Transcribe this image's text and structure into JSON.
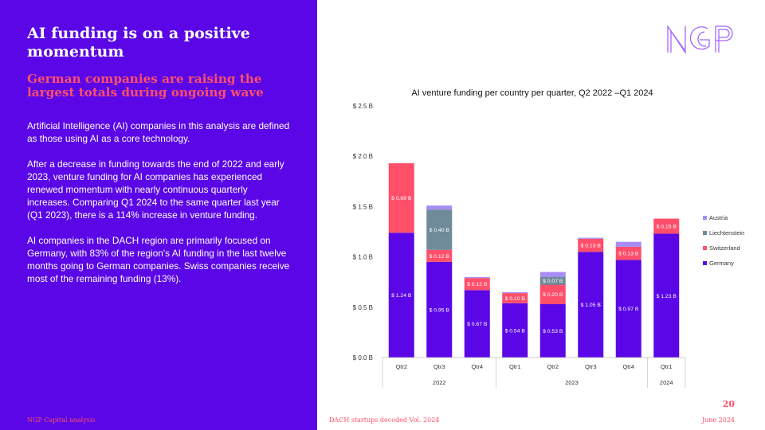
{
  "slide": {
    "title": "AI funding is on a positive momentum",
    "subtitle": "German companies are raising the largest totals during ongoing wave",
    "paragraphs": [
      "Artificial Intelligence (AI) companies in this analysis are defined as those using AI as a core technology.",
      "After a decrease in funding towards the end of 2022 and early 2023, venture funding for AI companies has experienced renewed momentum with nearly continuous quarterly increases. Comparing Q1 2024 to the same quarter last year (Q1 2023), there is a 114% increase in venture funding.",
      "AI companies in the DACH region are primarily focused on Germany, with 83% of the region's AI funding in the last twelve months going to German companies. Swiss companies receive most of the remaining funding (13%)."
    ],
    "page_number": "20",
    "footer_left": "NGP Capital analysis",
    "footer_center": "DACH startups decoded Vol. 2024",
    "footer_right": "June 2024",
    "logo_name": "ngp-logo"
  },
  "colors": {
    "background_left": "#5a06e6",
    "accent": "#ff4f6b",
    "germany": "#5a06e6",
    "switzerland": "#ff4f6b",
    "liechtenstein": "#6f8a99",
    "austria": "#a88cf5"
  },
  "chart_data": {
    "type": "bar",
    "stacked": true,
    "title": "AI venture funding per country per quarter, Q2 2022 –Q1 2024",
    "categories": [
      "Qtr2",
      "Qtr3",
      "Qtr4",
      "Qtr1",
      "Qtr2",
      "Qtr3",
      "Qtr4",
      "Qtr1"
    ],
    "year_groups": [
      {
        "label": "2022",
        "span": 3
      },
      {
        "label": "2023",
        "span": 4
      },
      {
        "label": "2024",
        "span": 1
      }
    ],
    "ylim": [
      0,
      2.5
    ],
    "yticks": [
      {
        "value": 0.0,
        "label": "$ 0.0 B"
      },
      {
        "value": 0.5,
        "label": "$ 0.5 B"
      },
      {
        "value": 1.0,
        "label": "$ 1.0 B"
      },
      {
        "value": 1.5,
        "label": "$ 1.5 B"
      },
      {
        "value": 2.0,
        "label": "$ 2.0 B"
      },
      {
        "value": 2.5,
        "label": "$ 2.5 B"
      }
    ],
    "series": [
      {
        "name": "Germany",
        "color": "#5a06e6",
        "values": [
          1.24,
          0.95,
          0.67,
          0.54,
          0.53,
          1.05,
          0.97,
          1.23
        ],
        "labels": [
          "$ 1.24 B",
          "$ 0.95 B",
          "$ 0.67 B",
          "$ 0.54 B",
          "$ 0.53 B",
          "$ 1.05 B",
          "$ 0.97 B",
          "$ 1.23 B"
        ]
      },
      {
        "name": "Switzerland",
        "color": "#ff4f6b",
        "values": [
          0.69,
          0.12,
          0.12,
          0.1,
          0.2,
          0.13,
          0.13,
          0.15
        ],
        "labels": [
          "$ 0.69 B",
          "$ 0.12 B",
          "$ 0.12 B",
          "$ 0.10 B",
          "$ 0.20 B",
          "$ 0.13 B",
          "$ 0.13 B",
          "$ 0.15 B"
        ]
      },
      {
        "name": "Liechtenstein",
        "color": "#6f8a99",
        "values": [
          0,
          0.4,
          0,
          0,
          0.07,
          0,
          0,
          0
        ],
        "labels": [
          "",
          "$ 0.40 B",
          "",
          "",
          "$ 0.07 B",
          "",
          "",
          ""
        ]
      },
      {
        "name": "Austria",
        "color": "#a88cf5",
        "values": [
          0,
          0.04,
          0.01,
          0.01,
          0.05,
          0.01,
          0.05,
          0
        ],
        "labels": [
          "",
          "",
          "",
          "",
          "",
          "",
          "",
          ""
        ]
      }
    ],
    "legend": {
      "position": "right",
      "order": [
        "Austria",
        "Liechtenstein",
        "Switzerland",
        "Germany"
      ]
    },
    "grid": false
  }
}
